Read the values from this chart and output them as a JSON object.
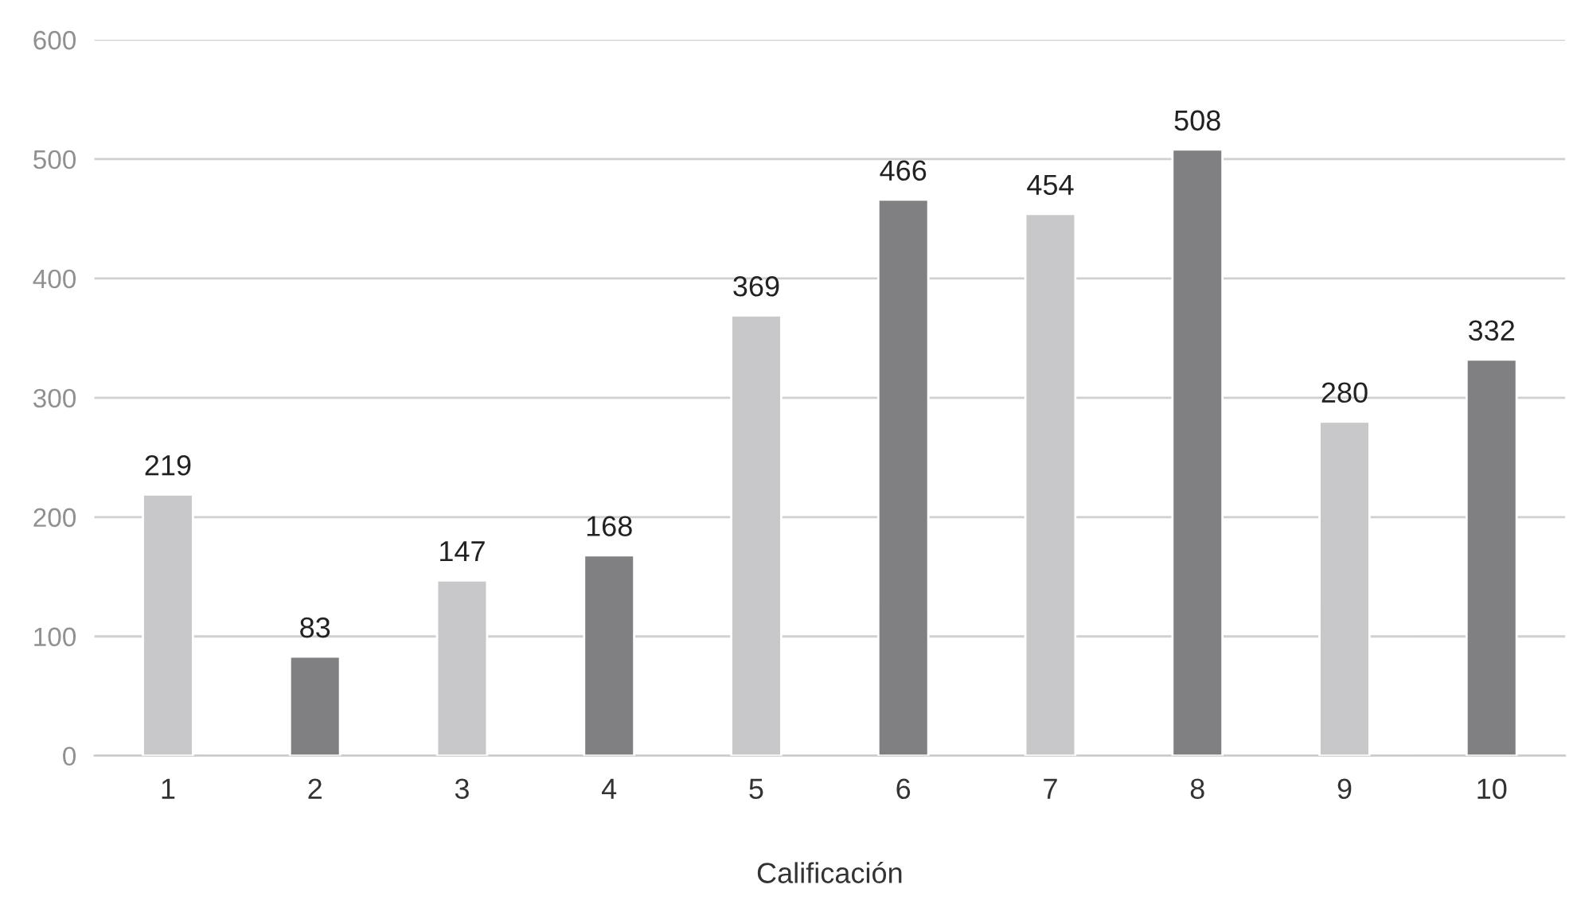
{
  "chart_data": {
    "type": "bar",
    "xlabel": "Calificación",
    "categories": [
      "1",
      "2",
      "3",
      "4",
      "5",
      "6",
      "7",
      "8",
      "9",
      "10"
    ],
    "values": [
      219,
      83,
      147,
      168,
      369,
      466,
      454,
      508,
      280,
      332
    ],
    "colors": [
      "#c8c8ca",
      "#808083",
      "#c8c8ca",
      "#808083",
      "#c8c8ca",
      "#808083",
      "#c8c8ca",
      "#808083",
      "#c8c8ca",
      "#808083"
    ],
    "ylim": [
      0,
      600
    ],
    "yticks": [
      0,
      100,
      200,
      300,
      400,
      500,
      600
    ],
    "grid": "y",
    "data_labels": true,
    "legend": false
  }
}
